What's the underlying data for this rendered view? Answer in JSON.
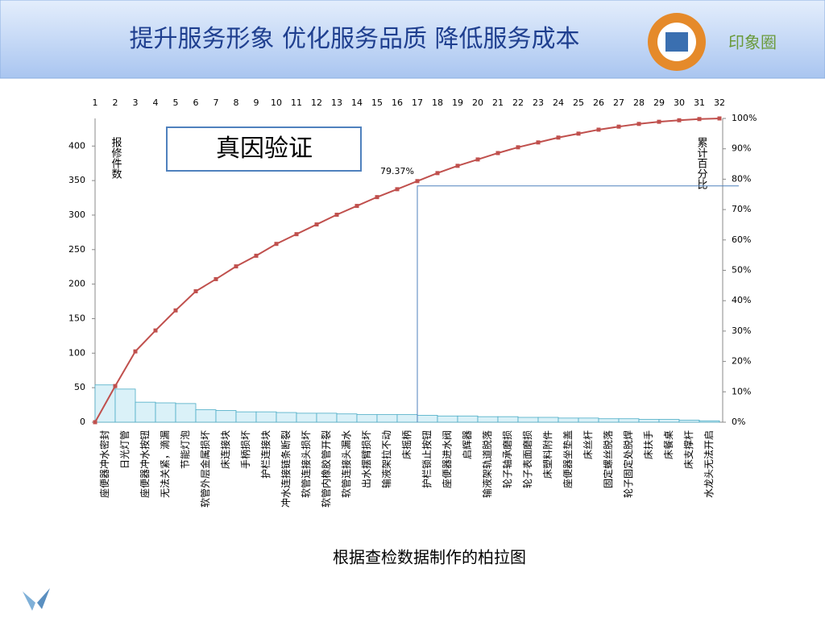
{
  "header": {
    "title": "提升服务形象  优化服务品质  降低服务成本",
    "brand": "印象圈"
  },
  "caption": "根据查检数据制作的柏拉图",
  "chart_data": {
    "type": "pareto",
    "annotation": "真因验证",
    "ylabel": "报修件数",
    "y2label": "累计百分比",
    "categories": [
      "座便器冲水密封",
      "日光灯管",
      "座便器冲水按钮",
      "无法关紧，滴漏",
      "节能灯泡",
      "软管外层金属损坏",
      "床连接块",
      "手柄损坏",
      "护栏连接块",
      "冲水连接链条断裂",
      "软管连接头损坏",
      "软管内橡胶管开裂",
      "软管连接头漏水",
      "出水摆臂损坏",
      "输液架拉不动",
      "床摇柄",
      "护栏锁止按钮",
      "座便器进水阀",
      "启辉器",
      "输液架轨道脱落",
      "轮子轴承磨损",
      "轮子表面磨损",
      "床塑料附件",
      "座便器坐垫盖",
      "床丝杆",
      "固定螺丝脱落",
      "轮子固定处脱焊",
      "床扶手",
      "床餐桌",
      "床支撑杆",
      "水龙头无法开启"
    ],
    "values": [
      54,
      48,
      29,
      28,
      27,
      18,
      17,
      15,
      15,
      14,
      13,
      13,
      12,
      11,
      11,
      11,
      10,
      9,
      9,
      8,
      8,
      7,
      7,
      6,
      6,
      5,
      5,
      4,
      4,
      3,
      2
    ],
    "color": "#daf1f8",
    "edge_color": "#4bacc6",
    "line": {
      "color": "#c0504d",
      "axis": "y2",
      "x": [
        0,
        1,
        2,
        3,
        4,
        5,
        6,
        7,
        8,
        9,
        10,
        11,
        12,
        13,
        14,
        15,
        16,
        17,
        18,
        19,
        20,
        21,
        22,
        23,
        24,
        25,
        26,
        27,
        28,
        29,
        30,
        31
      ],
      "values": [
        0,
        11.9,
        23.3,
        30.2,
        36.8,
        43.1,
        47.1,
        51.3,
        54.8,
        58.7,
        61.9,
        65.1,
        68.3,
        71.2,
        74.1,
        76.7,
        79.37,
        82.0,
        84.4,
        86.5,
        88.6,
        90.5,
        92.1,
        93.7,
        95.0,
        96.3,
        97.3,
        98.2,
        98.9,
        99.4,
        99.8,
        100
      ],
      "value_labels": [
        null,
        null,
        null,
        null,
        null,
        null,
        null,
        null,
        null,
        null,
        null,
        null,
        null,
        null,
        null,
        null,
        "79.37%",
        null,
        null,
        null,
        null,
        null,
        null,
        null,
        null,
        null,
        null,
        null,
        null,
        null,
        null,
        null
      ]
    },
    "xlim": [
      0,
      31
    ],
    "xticks": [
      {
        "value": 0,
        "label": "1"
      },
      {
        "value": 1,
        "label": "2"
      },
      {
        "value": 2,
        "label": "3"
      },
      {
        "value": 3,
        "label": "4"
      },
      {
        "value": 4,
        "label": "5"
      },
      {
        "value": 5,
        "label": "6"
      },
      {
        "value": 6,
        "label": "7"
      },
      {
        "value": 7,
        "label": "8"
      },
      {
        "value": 8,
        "label": "9"
      },
      {
        "value": 9,
        "label": "10"
      },
      {
        "value": 10,
        "label": "11"
      },
      {
        "value": 11,
        "label": "12"
      },
      {
        "value": 12,
        "label": "13"
      },
      {
        "value": 13,
        "label": "14"
      },
      {
        "value": 14,
        "label": "15"
      },
      {
        "value": 15,
        "label": "16"
      },
      {
        "value": 16,
        "label": "17"
      },
      {
        "value": 17,
        "label": "18"
      },
      {
        "value": 18,
        "label": "19"
      },
      {
        "value": 19,
        "label": "20"
      },
      {
        "value": 20,
        "label": "21"
      },
      {
        "value": 21,
        "label": "22"
      },
      {
        "value": 22,
        "label": "23"
      },
      {
        "value": 23,
        "label": "24"
      },
      {
        "value": 24,
        "label": "25"
      },
      {
        "value": 25,
        "label": "26"
      },
      {
        "value": 26,
        "label": "27"
      },
      {
        "value": 27,
        "label": "28"
      },
      {
        "value": 28,
        "label": "29"
      },
      {
        "value": 29,
        "label": "30"
      },
      {
        "value": 30,
        "label": "31"
      },
      {
        "value": 31,
        "label": "32"
      }
    ],
    "ylim": [
      0,
      440
    ],
    "yticks": [
      0,
      50,
      100,
      150,
      200,
      250,
      300,
      350,
      400
    ],
    "y2lim": [
      0,
      100
    ],
    "y2ticks": [
      {
        "value": 0,
        "label": "0%"
      },
      {
        "value": 10,
        "label": "10%"
      },
      {
        "value": 20,
        "label": "20%"
      },
      {
        "value": 30,
        "label": "30%"
      },
      {
        "value": 40,
        "label": "40%"
      },
      {
        "value": 50,
        "label": "50%"
      },
      {
        "value": 60,
        "label": "60%"
      },
      {
        "value": 70,
        "label": "70%"
      },
      {
        "value": 80,
        "label": "80%"
      },
      {
        "value": 90,
        "label": "90%"
      },
      {
        "value": 100,
        "label": "100%"
      }
    ]
  }
}
